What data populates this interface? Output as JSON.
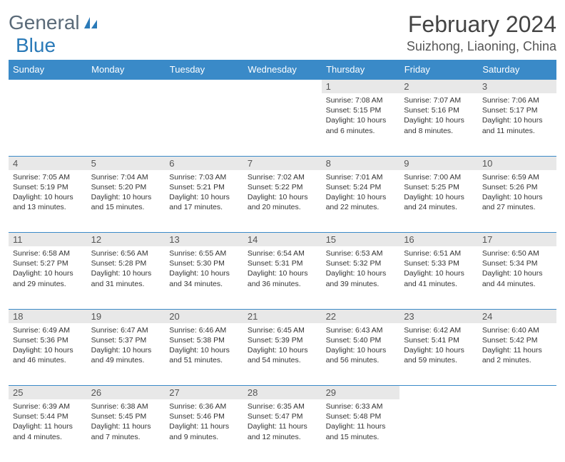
{
  "logo": {
    "text1": "General",
    "text2": "Blue"
  },
  "header": {
    "month": "February 2024",
    "location": "Suizhong, Liaoning, China"
  },
  "colors": {
    "header_bg": "#3a8ac8",
    "header_fg": "#ffffff",
    "daynum_bg": "#e8e8e8",
    "border": "#3a8ac8",
    "logo_gray": "#5a6a78",
    "logo_blue": "#2a7ab8"
  },
  "weekdays": [
    "Sunday",
    "Monday",
    "Tuesday",
    "Wednesday",
    "Thursday",
    "Friday",
    "Saturday"
  ],
  "weeks": [
    [
      null,
      null,
      null,
      null,
      {
        "day": "1",
        "sunrise": "Sunrise: 7:08 AM",
        "sunset": "Sunset: 5:15 PM",
        "daylight": "Daylight: 10 hours and 6 minutes."
      },
      {
        "day": "2",
        "sunrise": "Sunrise: 7:07 AM",
        "sunset": "Sunset: 5:16 PM",
        "daylight": "Daylight: 10 hours and 8 minutes."
      },
      {
        "day": "3",
        "sunrise": "Sunrise: 7:06 AM",
        "sunset": "Sunset: 5:17 PM",
        "daylight": "Daylight: 10 hours and 11 minutes."
      }
    ],
    [
      {
        "day": "4",
        "sunrise": "Sunrise: 7:05 AM",
        "sunset": "Sunset: 5:19 PM",
        "daylight": "Daylight: 10 hours and 13 minutes."
      },
      {
        "day": "5",
        "sunrise": "Sunrise: 7:04 AM",
        "sunset": "Sunset: 5:20 PM",
        "daylight": "Daylight: 10 hours and 15 minutes."
      },
      {
        "day": "6",
        "sunrise": "Sunrise: 7:03 AM",
        "sunset": "Sunset: 5:21 PM",
        "daylight": "Daylight: 10 hours and 17 minutes."
      },
      {
        "day": "7",
        "sunrise": "Sunrise: 7:02 AM",
        "sunset": "Sunset: 5:22 PM",
        "daylight": "Daylight: 10 hours and 20 minutes."
      },
      {
        "day": "8",
        "sunrise": "Sunrise: 7:01 AM",
        "sunset": "Sunset: 5:24 PM",
        "daylight": "Daylight: 10 hours and 22 minutes."
      },
      {
        "day": "9",
        "sunrise": "Sunrise: 7:00 AM",
        "sunset": "Sunset: 5:25 PM",
        "daylight": "Daylight: 10 hours and 24 minutes."
      },
      {
        "day": "10",
        "sunrise": "Sunrise: 6:59 AM",
        "sunset": "Sunset: 5:26 PM",
        "daylight": "Daylight: 10 hours and 27 minutes."
      }
    ],
    [
      {
        "day": "11",
        "sunrise": "Sunrise: 6:58 AM",
        "sunset": "Sunset: 5:27 PM",
        "daylight": "Daylight: 10 hours and 29 minutes."
      },
      {
        "day": "12",
        "sunrise": "Sunrise: 6:56 AM",
        "sunset": "Sunset: 5:28 PM",
        "daylight": "Daylight: 10 hours and 31 minutes."
      },
      {
        "day": "13",
        "sunrise": "Sunrise: 6:55 AM",
        "sunset": "Sunset: 5:30 PM",
        "daylight": "Daylight: 10 hours and 34 minutes."
      },
      {
        "day": "14",
        "sunrise": "Sunrise: 6:54 AM",
        "sunset": "Sunset: 5:31 PM",
        "daylight": "Daylight: 10 hours and 36 minutes."
      },
      {
        "day": "15",
        "sunrise": "Sunrise: 6:53 AM",
        "sunset": "Sunset: 5:32 PM",
        "daylight": "Daylight: 10 hours and 39 minutes."
      },
      {
        "day": "16",
        "sunrise": "Sunrise: 6:51 AM",
        "sunset": "Sunset: 5:33 PM",
        "daylight": "Daylight: 10 hours and 41 minutes."
      },
      {
        "day": "17",
        "sunrise": "Sunrise: 6:50 AM",
        "sunset": "Sunset: 5:34 PM",
        "daylight": "Daylight: 10 hours and 44 minutes."
      }
    ],
    [
      {
        "day": "18",
        "sunrise": "Sunrise: 6:49 AM",
        "sunset": "Sunset: 5:36 PM",
        "daylight": "Daylight: 10 hours and 46 minutes."
      },
      {
        "day": "19",
        "sunrise": "Sunrise: 6:47 AM",
        "sunset": "Sunset: 5:37 PM",
        "daylight": "Daylight: 10 hours and 49 minutes."
      },
      {
        "day": "20",
        "sunrise": "Sunrise: 6:46 AM",
        "sunset": "Sunset: 5:38 PM",
        "daylight": "Daylight: 10 hours and 51 minutes."
      },
      {
        "day": "21",
        "sunrise": "Sunrise: 6:45 AM",
        "sunset": "Sunset: 5:39 PM",
        "daylight": "Daylight: 10 hours and 54 minutes."
      },
      {
        "day": "22",
        "sunrise": "Sunrise: 6:43 AM",
        "sunset": "Sunset: 5:40 PM",
        "daylight": "Daylight: 10 hours and 56 minutes."
      },
      {
        "day": "23",
        "sunrise": "Sunrise: 6:42 AM",
        "sunset": "Sunset: 5:41 PM",
        "daylight": "Daylight: 10 hours and 59 minutes."
      },
      {
        "day": "24",
        "sunrise": "Sunrise: 6:40 AM",
        "sunset": "Sunset: 5:42 PM",
        "daylight": "Daylight: 11 hours and 2 minutes."
      }
    ],
    [
      {
        "day": "25",
        "sunrise": "Sunrise: 6:39 AM",
        "sunset": "Sunset: 5:44 PM",
        "daylight": "Daylight: 11 hours and 4 minutes."
      },
      {
        "day": "26",
        "sunrise": "Sunrise: 6:38 AM",
        "sunset": "Sunset: 5:45 PM",
        "daylight": "Daylight: 11 hours and 7 minutes."
      },
      {
        "day": "27",
        "sunrise": "Sunrise: 6:36 AM",
        "sunset": "Sunset: 5:46 PM",
        "daylight": "Daylight: 11 hours and 9 minutes."
      },
      {
        "day": "28",
        "sunrise": "Sunrise: 6:35 AM",
        "sunset": "Sunset: 5:47 PM",
        "daylight": "Daylight: 11 hours and 12 minutes."
      },
      {
        "day": "29",
        "sunrise": "Sunrise: 6:33 AM",
        "sunset": "Sunset: 5:48 PM",
        "daylight": "Daylight: 11 hours and 15 minutes."
      },
      null,
      null
    ]
  ]
}
